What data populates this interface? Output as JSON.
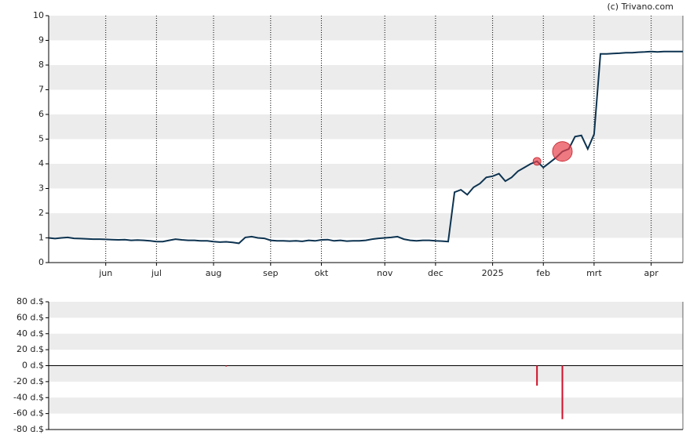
{
  "credit": "(c) Trivano.com",
  "chart_data": [
    {
      "type": "line",
      "categories": [
        null,
        null,
        null,
        null,
        null,
        null,
        null,
        null,
        null,
        "jun",
        null,
        null,
        null,
        null,
        null,
        null,
        null,
        "jul",
        null,
        null,
        null,
        null,
        null,
        null,
        null,
        null,
        "aug",
        null,
        null,
        null,
        null,
        null,
        null,
        null,
        null,
        "sep",
        null,
        null,
        null,
        null,
        null,
        null,
        null,
        "okt",
        null,
        null,
        null,
        null,
        null,
        null,
        null,
        null,
        null,
        "nov",
        null,
        null,
        null,
        null,
        null,
        null,
        null,
        "dec",
        null,
        null,
        null,
        null,
        null,
        null,
        null,
        null,
        "2025",
        null,
        null,
        null,
        null,
        null,
        null,
        null,
        "feb",
        null,
        null,
        null,
        null,
        null,
        null,
        null,
        "mrt",
        null,
        null,
        null,
        null,
        null,
        null,
        null,
        null,
        "apr",
        null,
        null,
        null,
        null,
        null
      ],
      "series": [
        {
          "color": "#0d3350",
          "values": [
            1.0,
            0.97,
            1.0,
            1.02,
            0.98,
            0.97,
            0.96,
            0.95,
            0.95,
            0.94,
            0.93,
            0.92,
            0.93,
            0.9,
            0.91,
            0.9,
            0.88,
            0.85,
            0.85,
            0.9,
            0.95,
            0.92,
            0.9,
            0.9,
            0.88,
            0.88,
            0.85,
            0.83,
            0.84,
            0.82,
            0.78,
            1.02,
            1.05,
            1.0,
            0.98,
            0.9,
            0.88,
            0.88,
            0.87,
            0.88,
            0.86,
            0.9,
            0.88,
            0.92,
            0.93,
            0.88,
            0.9,
            0.87,
            0.88,
            0.88,
            0.9,
            0.95,
            0.98,
            1.0,
            1.02,
            1.05,
            0.95,
            0.9,
            0.88,
            0.9,
            0.9,
            0.88,
            0.87,
            0.85,
            2.85,
            2.95,
            2.75,
            3.05,
            3.2,
            3.45,
            3.5,
            3.6,
            3.3,
            3.45,
            3.7,
            3.85,
            4.0,
            4.1,
            3.85,
            4.05,
            4.25,
            4.5,
            4.6,
            5.1,
            5.15,
            4.6,
            5.2,
            8.45,
            8.45,
            8.47,
            8.48,
            8.5,
            8.5,
            8.52,
            8.53,
            8.55,
            8.53,
            8.55,
            8.55,
            8.55,
            8.55
          ]
        }
      ],
      "markers": {
        "color": "#e8404a",
        "values": [
          null,
          null,
          null,
          null,
          null,
          null,
          null,
          null,
          null,
          null,
          null,
          null,
          null,
          null,
          null,
          null,
          null,
          null,
          null,
          null,
          null,
          null,
          null,
          null,
          null,
          null,
          null,
          null,
          null,
          null,
          null,
          null,
          null,
          null,
          null,
          null,
          null,
          null,
          null,
          null,
          null,
          null,
          null,
          null,
          null,
          null,
          null,
          null,
          null,
          null,
          null,
          null,
          null,
          null,
          null,
          null,
          null,
          null,
          null,
          null,
          null,
          null,
          null,
          null,
          null,
          null,
          null,
          null,
          null,
          null,
          null,
          null,
          null,
          null,
          null,
          null,
          null,
          4.1,
          null,
          null,
          null,
          4.5,
          null,
          null,
          null,
          null,
          null,
          null,
          null,
          null,
          null,
          null,
          null,
          null,
          null,
          null,
          null,
          null,
          null,
          null,
          null
        ]
      },
      "ylim": [
        0,
        10
      ],
      "yticks": [
        0,
        1,
        2,
        3,
        4,
        5,
        6,
        7,
        8,
        9,
        10
      ],
      "grid": true
    },
    {
      "type": "bar",
      "color": "#d0102a",
      "values": [
        null,
        null,
        null,
        null,
        null,
        null,
        null,
        null,
        null,
        null,
        null,
        null,
        null,
        null,
        null,
        null,
        null,
        null,
        null,
        null,
        null,
        null,
        null,
        null,
        null,
        null,
        null,
        null,
        -1,
        null,
        null,
        null,
        null,
        null,
        null,
        null,
        null,
        null,
        null,
        null,
        null,
        null,
        null,
        null,
        null,
        null,
        null,
        null,
        null,
        null,
        null,
        null,
        null,
        null,
        null,
        null,
        null,
        null,
        null,
        null,
        null,
        null,
        null,
        null,
        null,
        null,
        null,
        null,
        null,
        null,
        null,
        null,
        null,
        null,
        null,
        null,
        null,
        -25,
        null,
        null,
        null,
        -67,
        null,
        null,
        null,
        null,
        null,
        null,
        null,
        null,
        null,
        null,
        null,
        null,
        null,
        null,
        null,
        null,
        null,
        null,
        null
      ],
      "ylim": [
        -80,
        80
      ],
      "yticks": [
        {
          "value": -80,
          "label": "-80 d.$"
        },
        {
          "value": -60,
          "label": "-60 d.$"
        },
        {
          "value": -40,
          "label": "-40 d.$"
        },
        {
          "value": -20,
          "label": "-20 d.$"
        },
        {
          "value": 0,
          "label": "0 d.$"
        },
        {
          "value": 20,
          "label": "20 d.$"
        },
        {
          "value": 40,
          "label": "40 d.$"
        },
        {
          "value": 60,
          "label": "60 d.$"
        },
        {
          "value": 80,
          "label": "80 d.$"
        }
      ],
      "grid": true
    }
  ]
}
